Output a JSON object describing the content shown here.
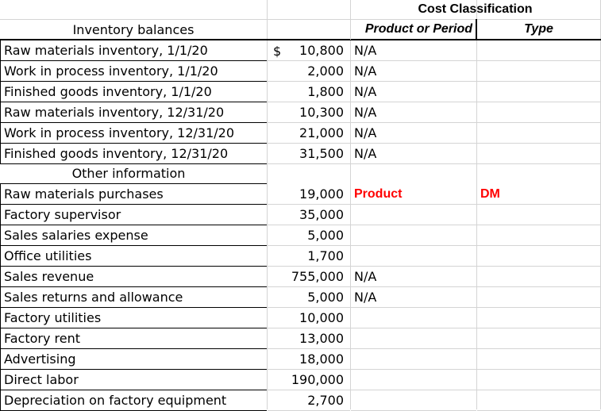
{
  "header": {
    "cost_classification": "Cost Classification",
    "product_or_period": "Product or Period",
    "type": "Type"
  },
  "inventory": {
    "title": "Inventory balances",
    "currency_symbol": "$",
    "rows": [
      {
        "label": "Raw materials inventory, 1/1/20",
        "amount": "10,800",
        "classification": "N/A"
      },
      {
        "label": "Work in process inventory, 1/1/20",
        "amount": "2,000",
        "classification": "N/A"
      },
      {
        "label": "Finished goods inventory, 1/1/20",
        "amount": "1,800",
        "classification": "N/A"
      },
      {
        "label": "Raw materials inventory, 12/31/20",
        "amount": "10,300",
        "classification": "N/A"
      },
      {
        "label": "Work in process inventory, 12/31/20",
        "amount": "21,000",
        "classification": "N/A"
      },
      {
        "label": "Finished goods inventory, 12/31/20",
        "amount": "31,500",
        "classification": "N/A"
      }
    ]
  },
  "other": {
    "title": "Other information",
    "rows": [
      {
        "label": "Raw materials purchases",
        "amount": "19,000",
        "classification": "Product",
        "type": "DM"
      },
      {
        "label": "Factory supervisor",
        "amount": "35,000",
        "classification": "",
        "type": ""
      },
      {
        "label": "Sales salaries expense",
        "amount": "5,000",
        "classification": "",
        "type": ""
      },
      {
        "label": "Office utilities",
        "amount": "1,700",
        "classification": "",
        "type": ""
      },
      {
        "label": "Sales revenue",
        "amount": "755,000",
        "classification": "N/A",
        "type": ""
      },
      {
        "label": "Sales returns and allowance",
        "amount": "5,000",
        "classification": "N/A",
        "type": ""
      },
      {
        "label": "Factory utilities",
        "amount": "10,000",
        "classification": "",
        "type": ""
      },
      {
        "label": "Factory rent",
        "amount": "13,000",
        "classification": "",
        "type": ""
      },
      {
        "label": "Advertising",
        "amount": "18,000",
        "classification": "",
        "type": ""
      },
      {
        "label": "Direct labor",
        "amount": "190,000",
        "classification": "",
        "type": ""
      },
      {
        "label": "Depreciation on factory equipment",
        "amount": "2,700",
        "classification": "",
        "type": ""
      }
    ]
  },
  "colors": {
    "highlight": "#ff0000",
    "gridline": "#d4d4d4",
    "border": "#000000"
  }
}
